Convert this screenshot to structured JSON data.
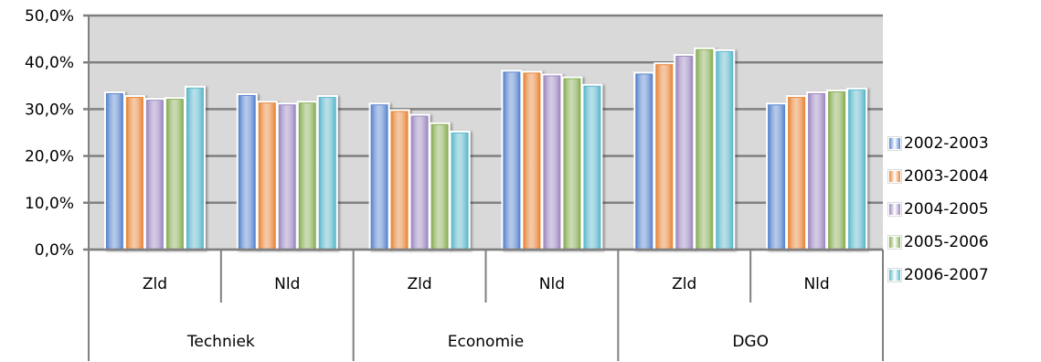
{
  "chart_data": {
    "type": "bar",
    "title": "",
    "xlabel": "",
    "ylabel": "",
    "ylim": [
      0,
      50
    ],
    "y_ticks": [
      0,
      10,
      20,
      30,
      40,
      50
    ],
    "y_tick_labels": [
      "0,0%",
      "10,0%",
      "20,0%",
      "30,0%",
      "40,0%",
      "50,0%"
    ],
    "grid": true,
    "legend_position": "right",
    "groups": [
      {
        "label": "Techniek",
        "subcategories": [
          "Zld",
          "Nld"
        ]
      },
      {
        "label": "Economie",
        "subcategories": [
          "Zld",
          "Nld"
        ]
      },
      {
        "label": "DGO",
        "subcategories": [
          "Zld",
          "Nld"
        ]
      }
    ],
    "categories": [
      "Zld",
      "Nld",
      "Zld",
      "Nld",
      "Zld",
      "Nld"
    ],
    "series": [
      {
        "name": "2002-2003",
        "color": "#5B87CF",
        "values": [
          33.6,
          33.2,
          31.2,
          38.2,
          37.8,
          31.2
        ]
      },
      {
        "name": "2003-2004",
        "color": "#E8883C",
        "values": [
          32.8,
          31.6,
          29.8,
          38.0,
          39.8,
          32.8
        ]
      },
      {
        "name": "2004-2005",
        "color": "#9F8BC1",
        "values": [
          32.2,
          31.2,
          28.8,
          37.4,
          41.6,
          33.6
        ]
      },
      {
        "name": "2005-2006",
        "color": "#8BB05A",
        "values": [
          32.4,
          31.6,
          27.0,
          36.8,
          43.0,
          34.0
        ]
      },
      {
        "name": "2006-2007",
        "color": "#5FB9CC",
        "values": [
          34.8,
          32.8,
          25.2,
          35.2,
          42.6,
          34.4
        ]
      }
    ]
  }
}
